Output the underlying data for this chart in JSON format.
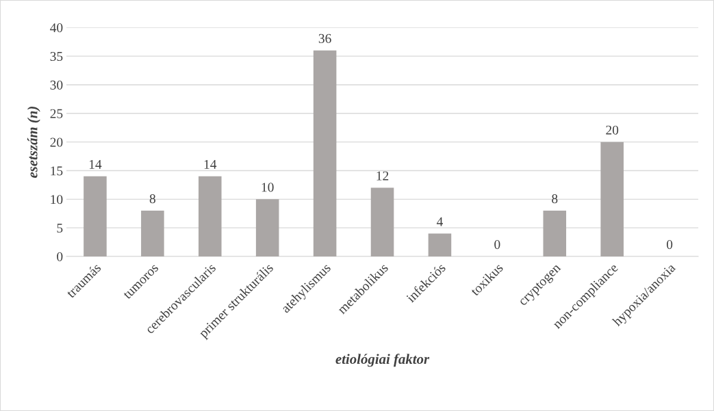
{
  "chart_data": {
    "type": "bar",
    "categories": [
      "traumás",
      "tumoros",
      "cerebrovascularis",
      "primer strukturális",
      "atehylismus",
      "metabolikus",
      "infekciós",
      "toxikus",
      "cryptogen",
      "non-compliance",
      "hypoxia/anoxia"
    ],
    "values": [
      14,
      8,
      14,
      10,
      36,
      12,
      4,
      0,
      8,
      20,
      0
    ],
    "color": "#aaa6a5",
    "xlabel": "etiológiai faktor",
    "ylabel": "esetszám (n)",
    "ylim": [
      0,
      40
    ],
    "yticks": [
      0,
      5,
      10,
      15,
      20,
      25,
      30,
      35,
      40
    ],
    "grid": "y",
    "data_labels": true,
    "legend": false
  }
}
